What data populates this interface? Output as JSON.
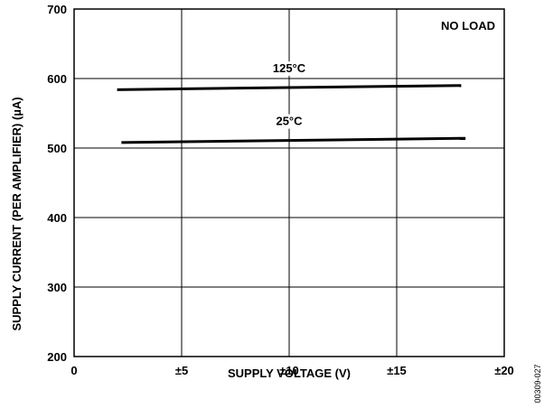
{
  "chart_data": {
    "type": "line",
    "title": "",
    "xlabel": "SUPPLY VOLTAGE (V)",
    "ylabel": "SUPPLY CURRENT (PER AMPLIFIER) (µA)",
    "xlim": [
      0,
      20
    ],
    "ylim": [
      200,
      700
    ],
    "x_ticks": [
      0,
      5,
      10,
      15,
      20
    ],
    "x_tick_labels": [
      "0",
      "±5",
      "±10",
      "±15",
      "±20"
    ],
    "y_ticks": [
      200,
      300,
      400,
      500,
      600,
      700
    ],
    "y_tick_labels": [
      "200",
      "300",
      "400",
      "500",
      "600",
      "700"
    ],
    "grid": true,
    "annotation": "NO LOAD",
    "figure_id": "00309-027",
    "series": [
      {
        "name": "125°C",
        "x": [
          2,
          18
        ],
        "y": [
          584,
          590
        ]
      },
      {
        "name": "25°C",
        "x": [
          2.2,
          18.2
        ],
        "y": [
          508,
          514
        ]
      }
    ]
  }
}
